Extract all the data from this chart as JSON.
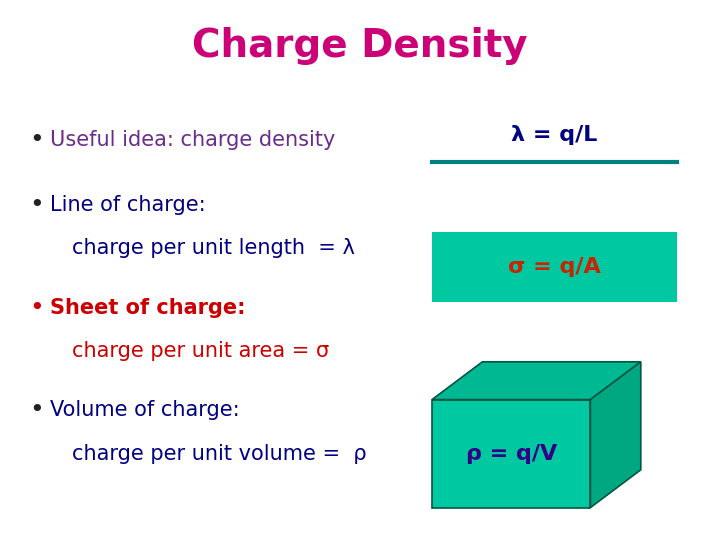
{
  "title": "Charge Density",
  "title_color": "#CC0077",
  "title_fontsize": 28,
  "bg_color": "#FFFFFF",
  "bullet_color": "#222222",
  "bullet1_text": "Useful idea: charge density",
  "bullet1_color": "#6B2D8B",
  "bullet2_header": "Line of charge:",
  "bullet2_header_color": "#000080",
  "bullet2_sub": "charge per unit length  = λ",
  "bullet2_sub_color": "#000080",
  "bullet3_header": "Sheet of charge:",
  "bullet3_header_color": "#CC0000",
  "bullet3_sub": "charge per unit area = σ",
  "bullet3_sub_color": "#CC0000",
  "bullet4_header": "Volume of charge:",
  "bullet4_header_color": "#000080",
  "bullet4_sub": "charge per unit volume =  ρ",
  "bullet4_sub_color": "#000080",
  "lambda_label": "λ = q/L",
  "lambda_label_color": "#000080",
  "line_color": "#008080",
  "sigma_label": "σ = q/A",
  "sigma_label_color": "#CC2200",
  "rect_color": "#00C8A0",
  "rho_label": "ρ = q/V",
  "rho_label_color": "#330088",
  "cube_color": "#00C8A0",
  "cube_right_color": "#00A882",
  "cube_top_color": "#00B892",
  "cube_edge_color": "#005544",
  "fontsize_bullets": 15,
  "fontsize_labels": 16
}
